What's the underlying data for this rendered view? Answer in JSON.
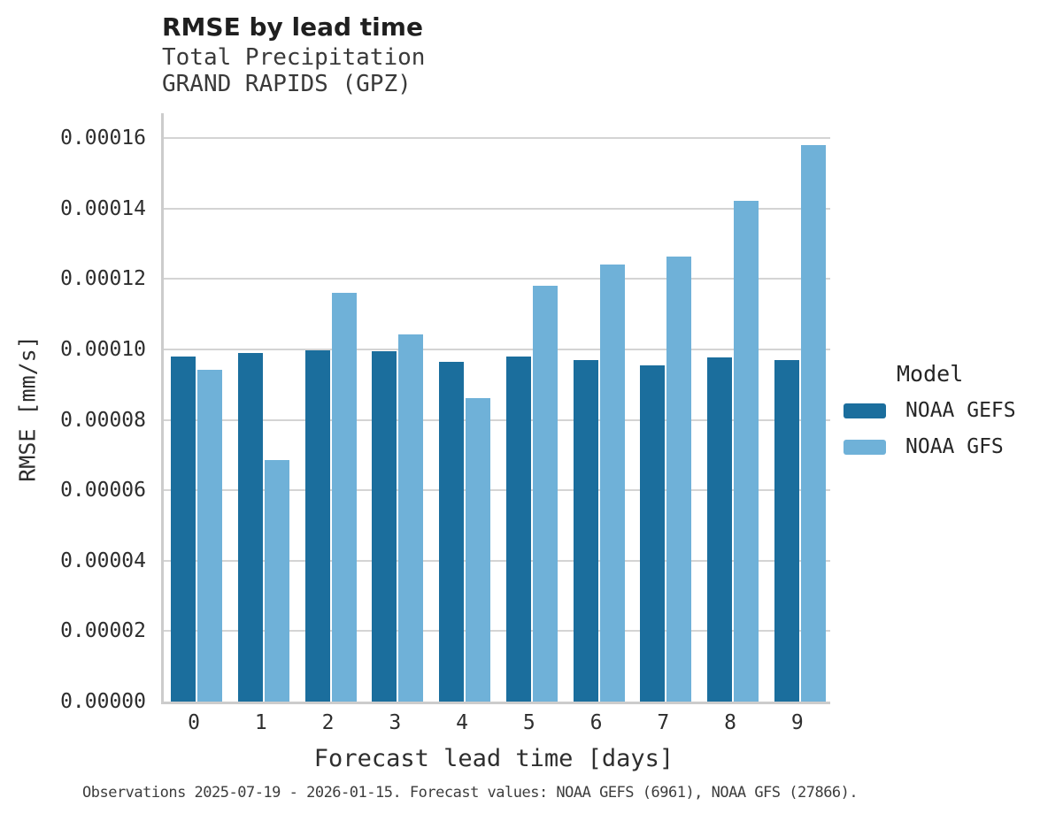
{
  "chart_data": {
    "type": "bar",
    "title": "RMSE by lead time",
    "subtitle_line1": "Total Precipitation",
    "subtitle_line2": "GRAND RAPIDS (GPZ)",
    "xlabel": "Forecast lead time [days]",
    "ylabel": "RMSE [mm/s]",
    "categories": [
      "0",
      "1",
      "2",
      "3",
      "4",
      "5",
      "6",
      "7",
      "8",
      "9"
    ],
    "series": [
      {
        "name": "NOAA GEFS",
        "color": "#1b6e9d",
        "values": [
          9.81e-05,
          9.9e-05,
          9.98e-05,
          9.94e-05,
          9.66e-05,
          9.79e-05,
          9.7e-05,
          9.56e-05,
          9.77e-05,
          9.7e-05
        ]
      },
      {
        "name": "NOAA GFS",
        "color": "#6fb1d8",
        "values": [
          9.41e-05,
          6.85e-05,
          0.000116,
          0.0001043,
          8.62e-05,
          0.0001181,
          0.000124,
          0.0001265,
          0.0001423,
          0.000158
        ]
      }
    ],
    "ylim": [
      0,
      0.000167
    ],
    "ytick_step": 2e-05,
    "yticks": [
      "0.00000",
      "0.00002",
      "0.00004",
      "0.00006",
      "0.00008",
      "0.00010",
      "0.00012",
      "0.00014",
      "0.00016"
    ],
    "grid": true,
    "legend_title": "Model",
    "legend_position": "right",
    "caption": "Observations 2025-07-19 - 2026-01-15. Forecast values: NOAA GEFS (6961), NOAA GFS (27866)."
  },
  "colors": {
    "grid": "#d4d4d4",
    "spine": "#cccccc",
    "title_text": "#1f1f1f",
    "secondary_text": "#3a3a3a"
  }
}
